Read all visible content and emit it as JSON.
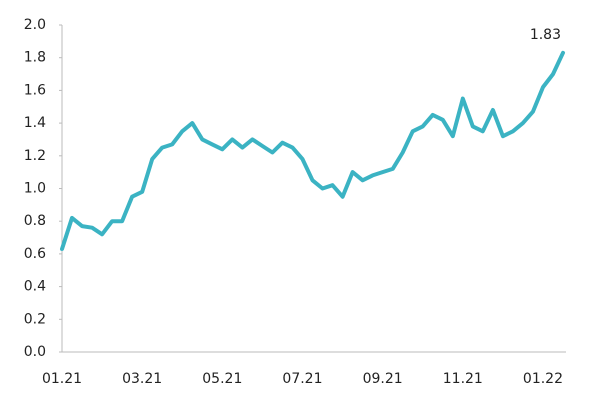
{
  "chart_data": {
    "type": "line",
    "categories": [
      "01.21",
      null,
      null,
      null,
      null,
      null,
      null,
      null,
      "03.21",
      null,
      null,
      null,
      null,
      null,
      null,
      null,
      "05.21",
      null,
      null,
      null,
      null,
      null,
      null,
      null,
      "07.21",
      null,
      null,
      null,
      null,
      null,
      null,
      null,
      "09.21",
      null,
      null,
      null,
      null,
      null,
      null,
      null,
      "11.21",
      null,
      null,
      null,
      null,
      null,
      null,
      null,
      "01.22",
      null,
      null
    ],
    "values": [
      0.63,
      0.82,
      0.77,
      0.76,
      0.72,
      0.8,
      0.8,
      0.95,
      0.98,
      1.18,
      1.25,
      1.27,
      1.35,
      1.4,
      1.3,
      1.27,
      1.24,
      1.3,
      1.25,
      1.3,
      1.26,
      1.22,
      1.28,
      1.25,
      1.18,
      1.05,
      1.0,
      1.02,
      0.95,
      1.1,
      1.05,
      1.08,
      1.1,
      1.12,
      1.22,
      1.35,
      1.38,
      1.45,
      1.42,
      1.32,
      1.55,
      1.38,
      1.35,
      1.48,
      1.32,
      1.35,
      1.4,
      1.47,
      1.62,
      1.7,
      1.83
    ],
    "color": "#3bb3c3",
    "ylim": [
      0,
      2.0
    ],
    "yticks": [
      {
        "value": 0,
        "label": "0.0"
      },
      0.2,
      0.4,
      0.6,
      0.8,
      {
        "value": 1,
        "label": "1.0"
      },
      1.2,
      1.4,
      1.6,
      1.8,
      {
        "value": 2,
        "label": "2.0"
      }
    ],
    "grid": false
  }
}
